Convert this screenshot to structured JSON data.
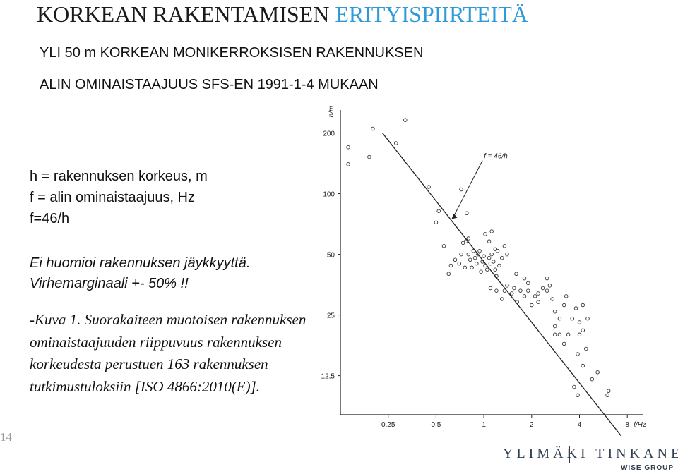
{
  "slide": {
    "title_main": "KORKEAN RAKENTAMISEN ",
    "title_highlight": "ERITYISPIIRTEITÄ",
    "subtitle_line1": "YLI 50 m KORKEAN MONIKERROKSISEN RAKENNUKSEN",
    "subtitle_line2": "ALIN OMINAISTAAJUUS SFS-EN 1991-1-4 MUKAAN",
    "definitions": [
      "h = rakennuksen korkeus, m",
      "f = alin ominaistaajuus, Hz",
      "f=46/h"
    ],
    "notes": [
      "Ei huomioi rakennuksen jäykkyyttä.",
      "Virhemarginaali  +- 50% !!"
    ],
    "caption": "-Kuva 1. Suorakaiteen muotoisen rakennuksen ominaistaajuuden riippuvuus rakennuksen korkeudesta perustuen 163 rakennuksen tutkimustuloksiin [ISO 4866:2010(E)].",
    "page_number": "14"
  },
  "logo": {
    "brand": "YLIMÄKI TINKANEN",
    "tagline": "WISE GROUP",
    "color": "#2f3f4f"
  },
  "colors": {
    "title_highlight": "#2e9ad8",
    "text": "#111111"
  },
  "chart_data": {
    "type": "scatter",
    "x_scale": "log",
    "y_scale": "log",
    "xlabel": "f/Hz",
    "ylabel": "h/m",
    "x_ticks": [
      "0,25",
      "0,5",
      "1",
      "2",
      "4",
      "8"
    ],
    "x_tick_values": [
      0.25,
      0.5,
      1,
      2,
      4,
      8
    ],
    "y_ticks": [
      "200",
      "100",
      "50",
      "25",
      "12,5"
    ],
    "y_tick_values": [
      200,
      100,
      50,
      25,
      12.5
    ],
    "xlim": [
      0.125,
      10
    ],
    "ylim": [
      8,
      260
    ],
    "line_label": "f = 46/h",
    "line_constant": 46,
    "points": [
      [
        0.14,
        170
      ],
      [
        0.14,
        140
      ],
      [
        0.19,
        152
      ],
      [
        0.32,
        232
      ],
      [
        0.2,
        210
      ],
      [
        0.28,
        178
      ],
      [
        0.45,
        108
      ],
      [
        0.52,
        82
      ],
      [
        0.5,
        72
      ],
      [
        0.72,
        105
      ],
      [
        0.78,
        80
      ],
      [
        0.56,
        55
      ],
      [
        0.6,
        40
      ],
      [
        0.72,
        50
      ],
      [
        0.74,
        57
      ],
      [
        0.77,
        58
      ],
      [
        0.8,
        50
      ],
      [
        0.82,
        47
      ],
      [
        0.84,
        43
      ],
      [
        0.86,
        52
      ],
      [
        0.88,
        48
      ],
      [
        0.9,
        45
      ],
      [
        0.92,
        50
      ],
      [
        0.94,
        52
      ],
      [
        0.96,
        41
      ],
      [
        0.98,
        46
      ],
      [
        1.0,
        49
      ],
      [
        1.02,
        44
      ],
      [
        1.05,
        42
      ],
      [
        1.08,
        48
      ],
      [
        1.1,
        45
      ],
      [
        1.12,
        50
      ],
      [
        1.15,
        46
      ],
      [
        1.18,
        42
      ],
      [
        1.2,
        39
      ],
      [
        1.22,
        52
      ],
      [
        1.25,
        44
      ],
      [
        1.3,
        48
      ],
      [
        1.35,
        55
      ],
      [
        0.7,
        45
      ],
      [
        0.76,
        43
      ],
      [
        0.8,
        60
      ],
      [
        0.66,
        47
      ],
      [
        0.62,
        44
      ],
      [
        1.02,
        63
      ],
      [
        1.08,
        58
      ],
      [
        1.12,
        65
      ],
      [
        1.18,
        53
      ],
      [
        1.35,
        33
      ],
      [
        1.4,
        35
      ],
      [
        1.5,
        32
      ],
      [
        1.55,
        34
      ],
      [
        1.62,
        29
      ],
      [
        1.7,
        33
      ],
      [
        1.8,
        31
      ],
      [
        1.9,
        33
      ],
      [
        2.0,
        28
      ],
      [
        1.1,
        34
      ],
      [
        1.2,
        33
      ],
      [
        1.3,
        30
      ],
      [
        2.2,
        32
      ],
      [
        2.35,
        34
      ],
      [
        2.5,
        33
      ],
      [
        2.6,
        35
      ],
      [
        2.7,
        30
      ],
      [
        2.8,
        26
      ],
      [
        3.0,
        24
      ],
      [
        3.2,
        28
      ],
      [
        3.4,
        20
      ],
      [
        3.6,
        24
      ],
      [
        3.8,
        27
      ],
      [
        4.0,
        20
      ],
      [
        4.2,
        21
      ],
      [
        4.4,
        17
      ],
      [
        4.0,
        23
      ],
      [
        4.2,
        28
      ],
      [
        4.5,
        24
      ],
      [
        2.8,
        20
      ],
      [
        3.0,
        20
      ],
      [
        4.2,
        14
      ],
      [
        4.8,
        12
      ],
      [
        5.2,
        13
      ],
      [
        3.7,
        11
      ],
      [
        3.9,
        10
      ],
      [
        6.0,
        10
      ],
      [
        3.9,
        16
      ],
      [
        3.2,
        18
      ],
      [
        2.2,
        29
      ],
      [
        2.1,
        31
      ],
      [
        1.6,
        40
      ],
      [
        1.8,
        38
      ],
      [
        1.4,
        50
      ],
      [
        1.9,
        36
      ],
      [
        2.5,
        38
      ],
      [
        2.8,
        22
      ],
      [
        3.3,
        31
      ],
      [
        6.1,
        10.5
      ]
    ]
  }
}
